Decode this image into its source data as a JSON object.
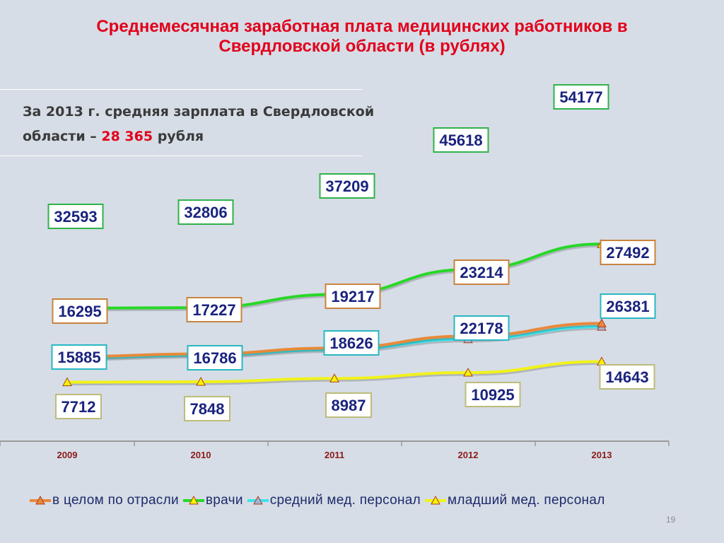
{
  "title_line1": "Среднемесячная заработная плата медицинских работников в",
  "title_line2": "Свердловской области (в рублях)",
  "note": {
    "line1": "За 2013 г. средняя зарплата в Свердловской",
    "line2_prefix": "области – ",
    "line2_highlight": "28 365",
    "line2_suffix": " рубля"
  },
  "slide_number": "19",
  "chart_data": {
    "type": "line",
    "title": "Среднемесячная заработная плата медицинских работников в Свердловской области (в рублях)",
    "categories": [
      "2009",
      "2010",
      "2011",
      "2012",
      "2013"
    ],
    "grid": false,
    "legend_position": "bottom",
    "series": [
      {
        "name": "в целом по отрасли",
        "values": [
          16295,
          17227,
          19217,
          23214,
          27492
        ],
        "color": "#e8893a",
        "label_border": "#c9833e",
        "marker_fill": "#e8893a"
      },
      {
        "name": "врачи",
        "values": [
          32593,
          32806,
          37209,
          45618,
          54177
        ],
        "color": "#27d827",
        "label_border": "#2fb24a",
        "marker_fill": "#f4f400"
      },
      {
        "name": "средний мед. персонал",
        "values": [
          15885,
          16786,
          18626,
          22178,
          26381
        ],
        "color": "#3fe3ea",
        "label_border": "#29b7c4",
        "marker_fill": "#9fb5dc"
      },
      {
        "name": "младший мед. персонал",
        "values": [
          7712,
          7848,
          8987,
          10925,
          14643
        ],
        "color": "#f2f21a",
        "label_border": "#bcbc7a",
        "marker_fill": "#f4f400"
      }
    ]
  }
}
